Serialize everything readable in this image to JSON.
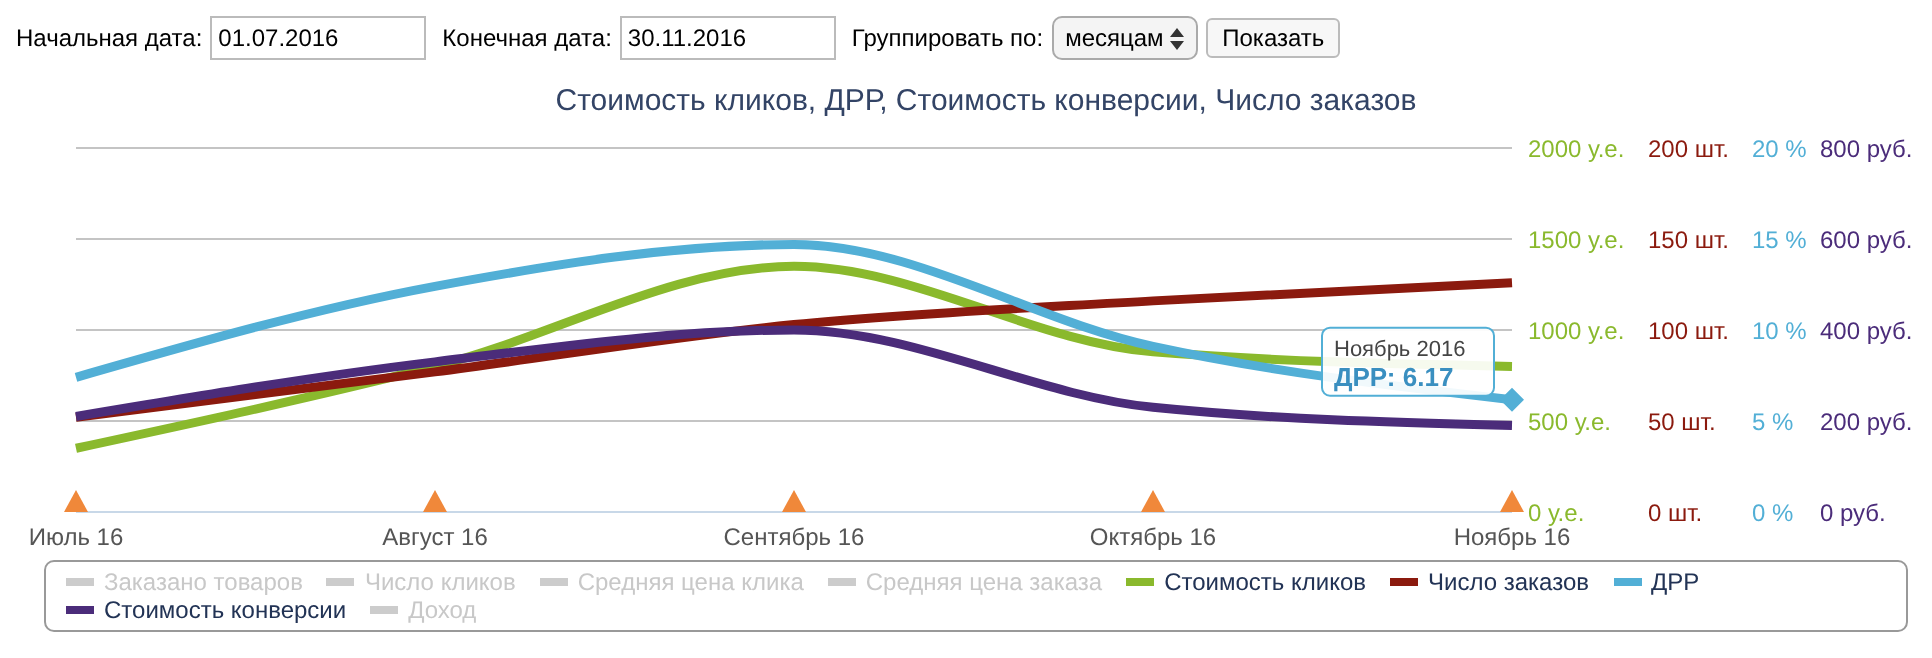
{
  "chart_data": [
    {
      "type": "line",
      "title": "Стоимость кликов, ДРР, Стоимость конверсии, Число заказов",
      "annotations": [
        "Начальная дата:",
        "01.07.2016",
        "Конечная дата:",
        "30.11.2016",
        "Группировать по:",
        "месяцам",
        "Показать"
      ],
      "categories": [
        "Июль 16",
        "Август 16",
        "Сентябрь 16",
        "Октябрь 16",
        "Ноябрь 16"
      ],
      "series": [
        {
          "name": "Заказано товаров",
          "color": "#cccccc",
          "values": [
            null,
            null,
            null,
            null,
            null
          ]
        },
        {
          "name": "Число кликов",
          "color": "#cccccc",
          "values": [
            null,
            null,
            null,
            null,
            null
          ]
        },
        {
          "name": "Средняя цена клика",
          "color": "#cccccc",
          "values": [
            null,
            null,
            null,
            null,
            null
          ]
        },
        {
          "name": "Средняя цена заказа",
          "color": "#cccccc",
          "values": [
            null,
            null,
            null,
            null,
            null
          ]
        },
        {
          "name": "Стоимость кликов",
          "color": "#8ab92d",
          "values": [
            350,
            800,
            1350,
            880,
            800
          ]
        },
        {
          "name": "Число заказов",
          "color": "#8b1a0e",
          "axis": "y2",
          "values": [
            52,
            77,
            103,
            116,
            126
          ]
        }
      ],
      "ylim": [
        0,
        2000
      ],
      "yticks": [
        {
          "value": 0,
          "label": "0 у.е."
        },
        {
          "value": 500,
          "label": "500 у.е."
        },
        {
          "value": 1000,
          "label": "1000 у.е."
        },
        {
          "value": 1500,
          "label": "1500 у.е."
        },
        {
          "value": 2000,
          "label": "2000 у.е."
        }
      ],
      "y2lim": [
        0,
        200
      ],
      "y2ticks": [
        {
          "value": 0,
          "label": "0 шт."
        },
        {
          "value": 50,
          "label": "50 шт."
        },
        {
          "value": 100,
          "label": "100 шт."
        },
        {
          "value": 150,
          "label": "150 шт."
        },
        {
          "value": 200,
          "label": "200 шт."
        }
      ],
      "grid": "y",
      "legend": "bottom",
      "marker": "none",
      "line_style": "solid"
    },
    {
      "type": "line",
      "annotations": [
        "Ноябрь 2016",
        "ДРР: 6.17"
      ],
      "categories": [
        null,
        null,
        null,
        null,
        null
      ],
      "series": [
        {
          "name": "ДРР",
          "color": "#52afd6",
          "values": [
            7.4,
            12.4,
            14.7,
            9.1,
            6.17
          ]
        },
        {
          "name": "Стоимость конверсии",
          "color": "#4b2c7a",
          "axis": "y2",
          "values": [
            210,
            330,
            400,
            230,
            190
          ]
        },
        {
          "name": "Доход",
          "color": "#cccccc",
          "values": [
            null,
            null,
            null,
            null,
            null
          ]
        }
      ],
      "ylim": [
        0,
        20
      ],
      "yticks": [
        {
          "value": 0,
          "label": "0 %"
        },
        {
          "value": 5,
          "label": "5 %"
        },
        {
          "value": 10,
          "label": "10 %"
        },
        {
          "value": 15,
          "label": "15 %"
        },
        {
          "value": 20,
          "label": "20 %"
        }
      ],
      "y2lim": [
        0,
        800
      ],
      "y2ticks": [
        {
          "value": 0,
          "label": "0 руб."
        },
        {
          "value": 200,
          "label": "200 руб."
        },
        {
          "value": 400,
          "label": "400 руб."
        },
        {
          "value": 600,
          "label": "600 руб."
        },
        {
          "value": 800,
          "label": "800 руб."
        }
      ],
      "tick_labels": "y",
      "legend": "bottom",
      "marker": "none",
      "line_style": "solid"
    }
  ]
}
